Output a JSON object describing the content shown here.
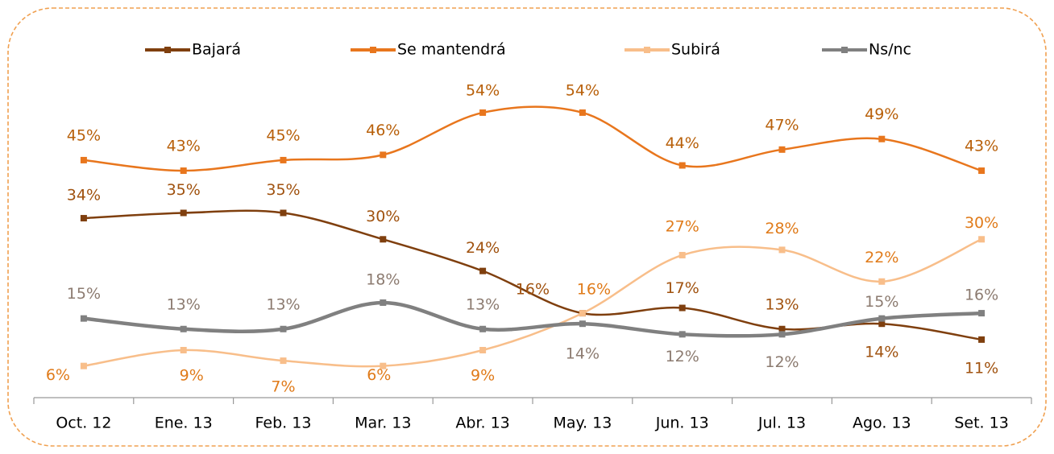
{
  "chart_data": {
    "type": "line",
    "categories": [
      "Oct. 12",
      "Ene. 13",
      "Feb. 13",
      "Mar. 13",
      "Abr. 13",
      "May. 13",
      "Jun. 13",
      "Jul. 13",
      "Ago. 13",
      "Set. 13"
    ],
    "ylim": [
      0,
      70
    ],
    "series": [
      {
        "name": "Bajará",
        "color": "#7f3f0e",
        "label_color": "#a0520f",
        "values": [
          34,
          35,
          35,
          30,
          24,
          16,
          17,
          13,
          14,
          11
        ],
        "value_labels": [
          "34%",
          "35%",
          "35%",
          "30%",
          "24%",
          "16%",
          "17%",
          "13%",
          "14%",
          "11%"
        ]
      },
      {
        "name": "Se mantendrá",
        "color": "#e8761d",
        "label_color": "#b8600a",
        "values": [
          45,
          43,
          45,
          46,
          54,
          54,
          44,
          47,
          49,
          43
        ],
        "value_labels": [
          "45%",
          "43%",
          "45%",
          "46%",
          "54%",
          "54%",
          "44%",
          "47%",
          "49%",
          "43%"
        ]
      },
      {
        "name": "Subirá",
        "color": "#f8be8a",
        "label_color": "#e07b1a",
        "values": [
          6,
          9,
          7,
          6,
          9,
          16,
          27,
          28,
          22,
          30
        ],
        "value_labels": [
          "6%",
          "9%",
          "7%",
          "6%",
          "9%",
          "16%",
          "27%",
          "28%",
          "22%",
          "30%"
        ]
      },
      {
        "name": "Ns/nc",
        "color": "#808080",
        "label_color": "#8c7b70",
        "values": [
          15,
          13,
          13,
          18,
          13,
          14,
          12,
          12,
          15,
          16
        ],
        "value_labels": [
          "15%",
          "13%",
          "13%",
          "18%",
          "13%",
          "14%",
          "12%",
          "12%",
          "15%",
          "16%"
        ]
      }
    ]
  }
}
